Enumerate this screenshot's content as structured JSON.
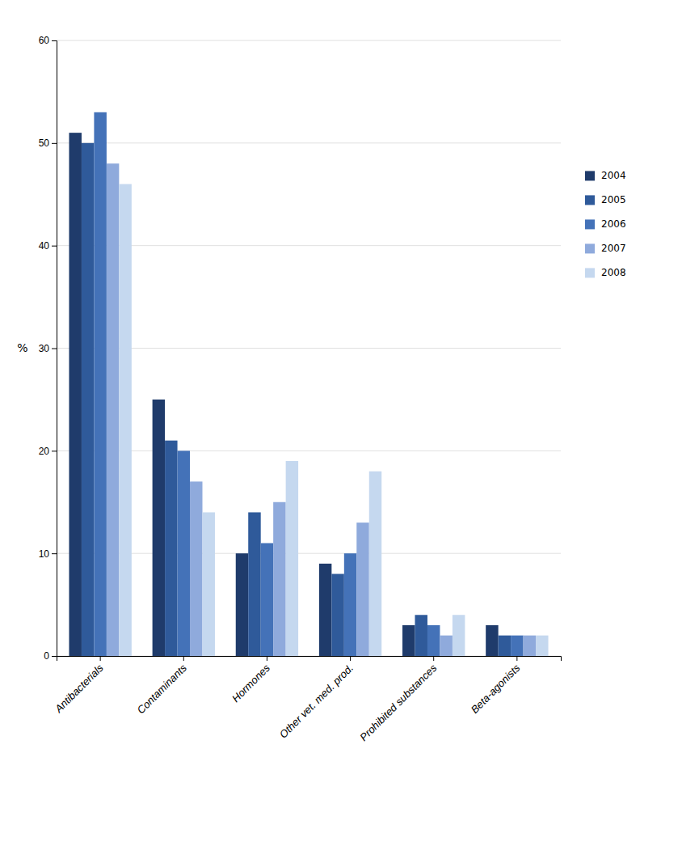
{
  "chart_data": {
    "type": "bar",
    "categories": [
      "Antibacterials",
      "Contaminants",
      "Hormones",
      "Other vet. med. prod.",
      "Prohibited substances",
      "Beta-agonists"
    ],
    "series": [
      {
        "name": "2004",
        "color": "#1F3B6B",
        "values": [
          51,
          25,
          10,
          9,
          3,
          3
        ]
      },
      {
        "name": "2005",
        "color": "#2F5A9A",
        "values": [
          50,
          21,
          14,
          8,
          4,
          2
        ]
      },
      {
        "name": "2006",
        "color": "#4472B8",
        "values": [
          53,
          20,
          11,
          10,
          3,
          2
        ]
      },
      {
        "name": "2007",
        "color": "#8FAADC",
        "values": [
          48,
          17,
          15,
          13,
          2,
          2
        ]
      },
      {
        "name": "2008",
        "color": "#C5D8EF",
        "values": [
          46,
          14,
          19,
          18,
          4,
          2
        ]
      }
    ],
    "y_label": "%",
    "ylim": [
      0,
      60
    ],
    "yticks": [
      0,
      10,
      20,
      30,
      40,
      50,
      60
    ],
    "grid": true,
    "legend": "right"
  }
}
